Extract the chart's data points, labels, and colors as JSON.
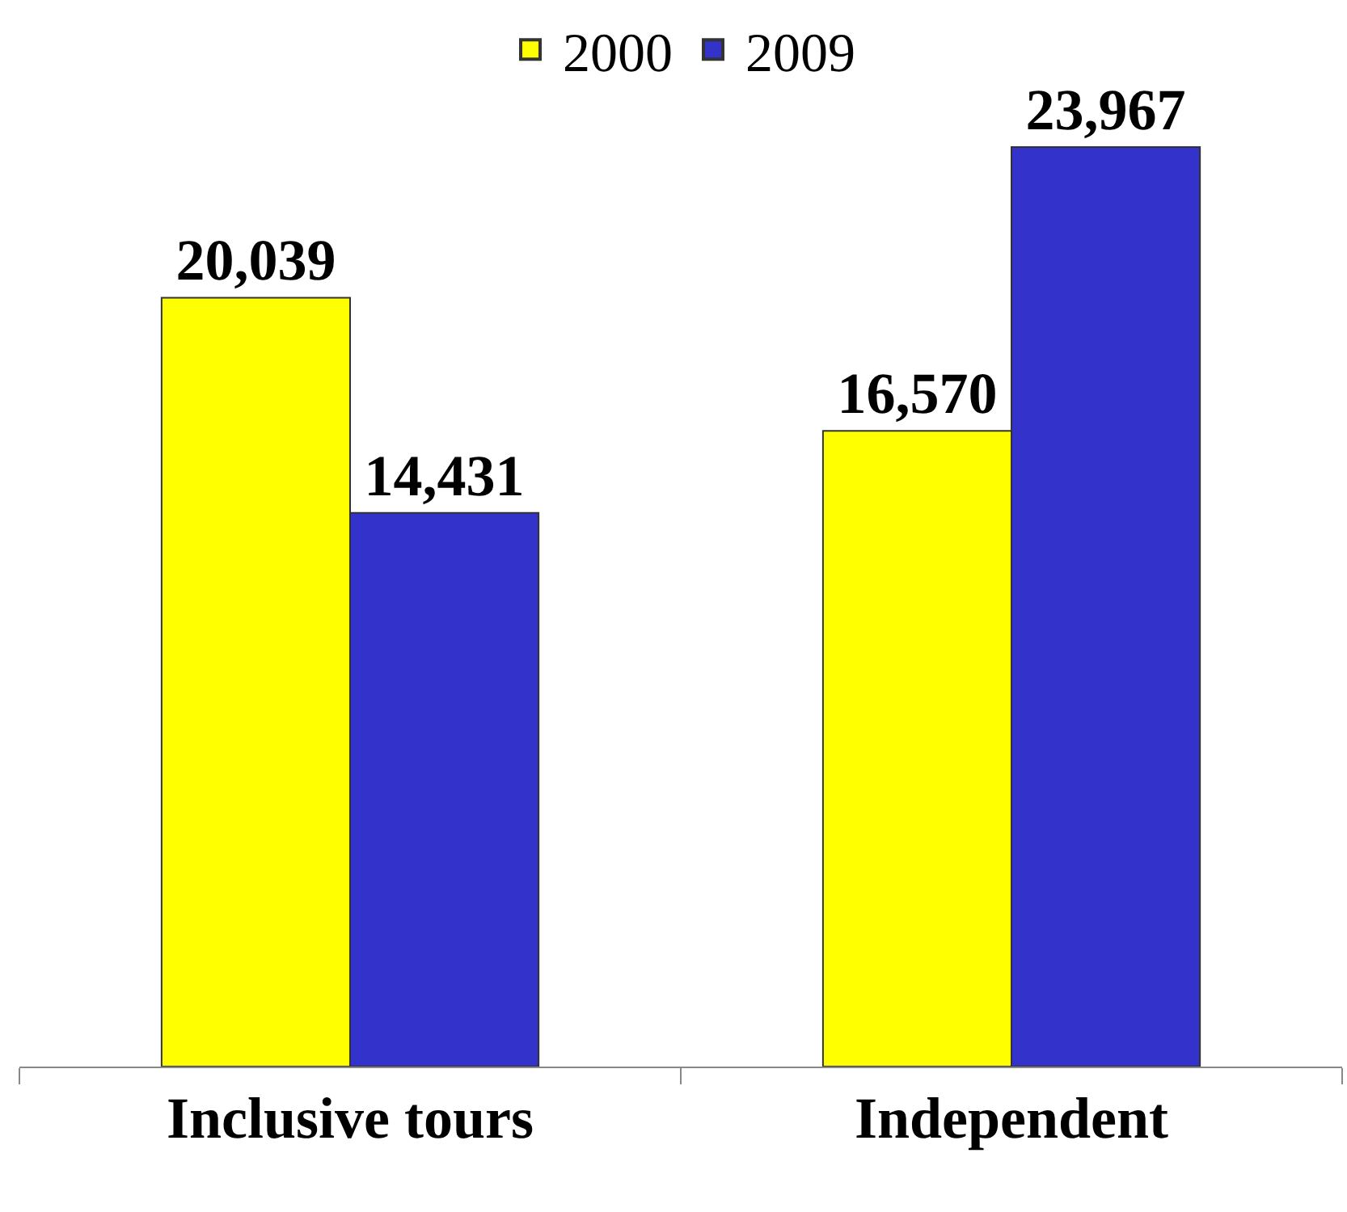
{
  "chart_data": {
    "type": "bar",
    "categories": [
      "Inclusive tours",
      "Independent"
    ],
    "series": [
      {
        "name": "2000",
        "color": "#ffff00",
        "values": [
          20039,
          16570
        ],
        "value_labels": [
          "20,039",
          "16,570"
        ]
      },
      {
        "name": "2009",
        "color": "#3333cc",
        "values": [
          14431,
          23967
        ],
        "value_labels": [
          "14,431",
          "23,967"
        ]
      }
    ],
    "tick_labels": "x",
    "grid": false,
    "legend": "top"
  }
}
